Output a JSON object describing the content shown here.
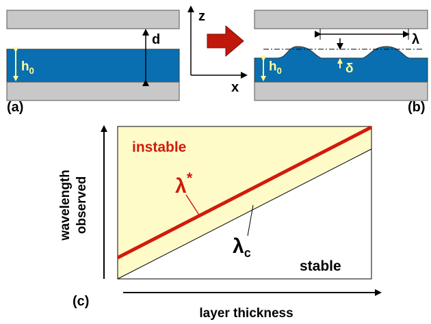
{
  "panels": {
    "a": {
      "label": "(a)",
      "gap": "d",
      "film": {
        "base": "h",
        "sub": "0"
      }
    },
    "axes": {
      "z": "z",
      "x": "x"
    },
    "b": {
      "label": "(b)",
      "wavelength": "λ",
      "amplitude": "δ",
      "film": {
        "base": "h",
        "sub": "0"
      }
    }
  },
  "plot": {
    "label": "(c)",
    "y_axis": [
      "wavelength",
      "observed"
    ],
    "x_axis": "layer thickness",
    "unstable": "instable",
    "stable": "stable",
    "lambda_star": {
      "base": "λ",
      "sup": "*"
    },
    "lambda_c": {
      "base": "λ",
      "sub": "c"
    }
  }
}
